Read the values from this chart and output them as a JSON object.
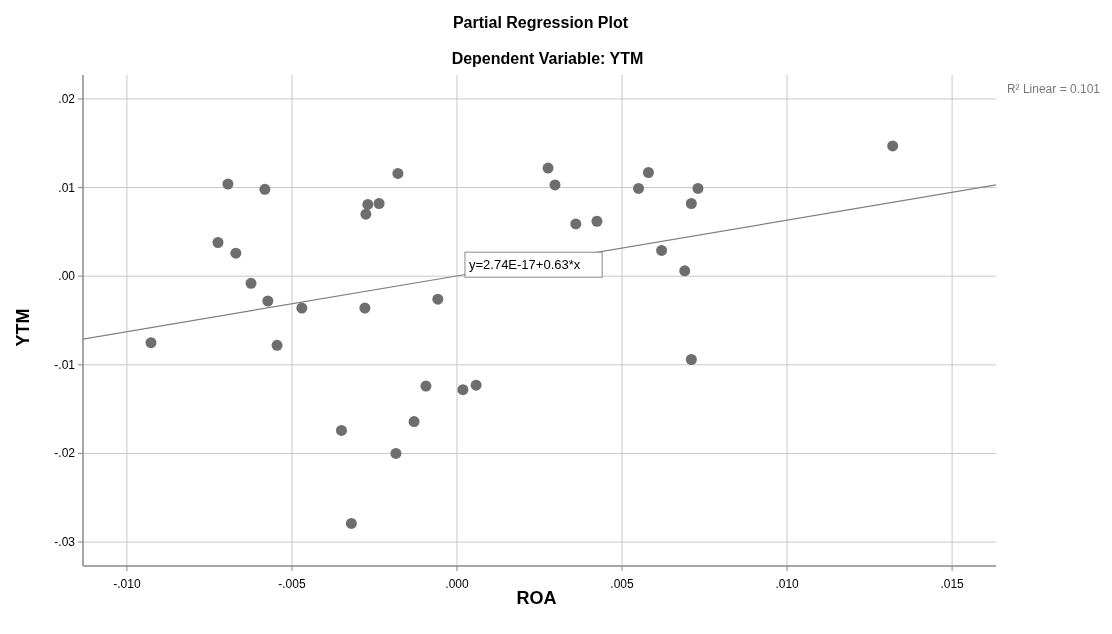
{
  "chart_data": {
    "type": "scatter",
    "title": "Partial Regression Plot",
    "subtitle": "Dependent Variable: YTM",
    "xlabel": "ROA",
    "ylabel": "YTM",
    "xlim": [
      -0.01133,
      0.01633
    ],
    "ylim": [
      -0.0327,
      0.0227
    ],
    "xticks": [
      {
        "value": -0.01,
        "label": "-.010"
      },
      {
        "value": -0.005,
        "label": "-.005"
      },
      {
        "value": 0,
        "label": ".000"
      },
      {
        "value": 0.005,
        "label": ".005"
      },
      {
        "value": 0.01,
        "label": ".010"
      },
      {
        "value": 0.015,
        "label": ".015"
      }
    ],
    "yticks": [
      {
        "value": -0.03,
        "label": "-.03"
      },
      {
        "value": -0.02,
        "label": "-.02"
      },
      {
        "value": -0.01,
        "label": "-.01"
      },
      {
        "value": 0,
        "label": ".00"
      },
      {
        "value": 0.01,
        "label": ".01"
      },
      {
        "value": 0.02,
        "label": ".02"
      }
    ],
    "grid": true,
    "series": [
      {
        "marker": "circle",
        "color": "#6e6e6e",
        "x": [
          -0.00927,
          -0.00724,
          -0.00694,
          -0.0067,
          -0.00624,
          -0.00582,
          -0.00573,
          -0.00545,
          -0.0047,
          -0.0027,
          -0.00276,
          -0.00236,
          -0.00179,
          -0.00279,
          -0.00058,
          -0.0035,
          -0.0032,
          -0.00185,
          -0.0013,
          -0.00094,
          0.00018,
          0.00058,
          0.00276,
          0.00297,
          0.0036,
          0.00424,
          0.0055,
          0.0058,
          0.0062,
          0.0069,
          0.0071,
          0.0073,
          0.0071,
          0.0132
        ],
        "values": [
          -0.0075,
          0.0038,
          0.0104,
          0.0026,
          -0.0008,
          0.0098,
          -0.0028,
          -0.0078,
          -0.0036,
          0.0081,
          0.007,
          0.0082,
          0.0116,
          -0.0036,
          -0.0026,
          -0.0174,
          -0.0279,
          -0.02,
          -0.0164,
          -0.0124,
          -0.0128,
          -0.0123,
          0.0122,
          0.0103,
          0.0059,
          0.0062,
          0.0099,
          0.0117,
          0.0029,
          0.0006,
          0.0082,
          0.0099,
          -0.0094,
          0.0147
        ]
      },
      {
        "type": "line",
        "color": "#808080",
        "x": [
          -0.01133,
          0.01633
        ],
        "values": [
          -0.0071,
          0.0103
        ]
      }
    ],
    "annotations": [
      "R² Linear = 0.101",
      {
        "text": "y=2.74E-17+0.63*x",
        "x": 0,
        "y": 0
      }
    ]
  }
}
